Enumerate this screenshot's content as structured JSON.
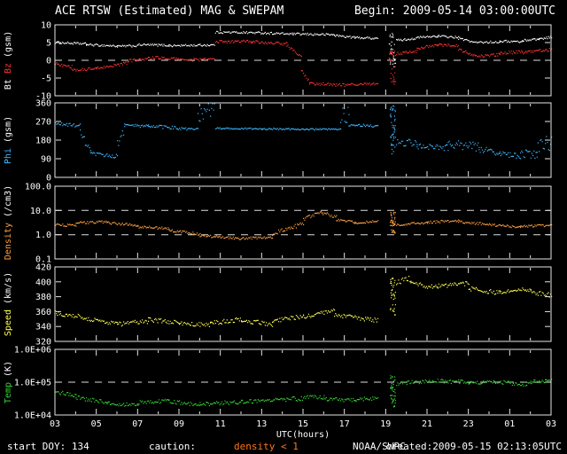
{
  "header": {
    "title": "ACE RTSW (Estimated) MAG & SWEPAM",
    "begin": "Begin: 2009-05-14 03:00:00UTC"
  },
  "footer": {
    "start_doy": "start DOY: 134",
    "caution_label": "caution:",
    "caution_value": "density < 1",
    "source": "NOAA/SWPC",
    "created": "created:2009-05-15 02:13:05UTC"
  },
  "chart_data": {
    "type": "scatter",
    "title": "ACE RTSW (Estimated) MAG & SWEPAM",
    "begin_time": "2009-05-14 03:00:00UTC",
    "background": "#000000",
    "x_axis": {
      "label": "UTC(hours)",
      "start_hour": 3,
      "end_hour": 27,
      "tick_interval_hours": 2,
      "tick_labels": [
        "03",
        "05",
        "07",
        "09",
        "11",
        "13",
        "15",
        "17",
        "19",
        "21",
        "23",
        "01",
        "03"
      ]
    },
    "panels": [
      {
        "name": "mag",
        "label_parts": [
          {
            "text": "Bt ",
            "color": "#ffffff"
          },
          {
            "text": "Bz",
            "color": "#ff3232"
          },
          {
            "text": " (gsm)",
            "color": "#ffffff"
          }
        ],
        "scale": "linear",
        "ylim": [
          -10,
          10
        ],
        "yticks": [
          {
            "v": 10,
            "label": "10"
          },
          {
            "v": 5,
            "label": "5"
          },
          {
            "v": 0,
            "label": "0"
          },
          {
            "v": -5,
            "label": "-5"
          },
          {
            "v": -10,
            "label": "-10"
          }
        ],
        "dashed": [
          0
        ],
        "series": [
          {
            "name": "Bt",
            "color": "#ffffff",
            "noise": 0.3,
            "segments": [
              [
                3,
                4.5,
                5.0,
                4.6
              ],
              [
                4.5,
                6,
                4.4,
                4.0
              ],
              [
                6,
                7,
                3.9,
                4.1
              ],
              [
                7,
                8.5,
                4.4,
                4.2
              ],
              [
                8.5,
                10.7,
                4.1,
                4.3
              ],
              [
                10.75,
                12.5,
                7.9,
                7.8
              ],
              [
                12.5,
                14.5,
                7.8,
                7.4
              ],
              [
                14.5,
                16.5,
                7.4,
                7.2
              ],
              [
                16.5,
                17.5,
                7.0,
                6.4
              ],
              [
                17.5,
                18.6,
                6.4,
                6.2
              ],
              [
                19.15,
                19.45,
                3,
                3,
                5,
                30
              ],
              [
                19.5,
                20.5,
                5.6,
                6.2
              ],
              [
                20.5,
                21.5,
                6.4,
                6.8
              ],
              [
                21.5,
                22.5,
                6.8,
                6.4
              ],
              [
                22.5,
                23.2,
                6.2,
                5.2
              ],
              [
                23.2,
                24.5,
                5.0,
                5.2
              ],
              [
                24.5,
                25.6,
                5.4,
                5.2
              ],
              [
                25.6,
                26.4,
                5.6,
                6.0
              ],
              [
                26.4,
                27,
                6.0,
                6.6
              ]
            ]
          },
          {
            "name": "Bz",
            "color": "#ff3232",
            "noise": 0.4,
            "segments": [
              [
                3,
                3.8,
                -1.0,
                -1.8
              ],
              [
                3.8,
                5,
                -2.8,
                -2.4
              ],
              [
                5,
                6.5,
                -2.2,
                -0.8
              ],
              [
                6.5,
                8,
                -0.2,
                0.8
              ],
              [
                8,
                9.5,
                0.6,
                0.2
              ],
              [
                9.5,
                10.7,
                0.1,
                0.3
              ],
              [
                10.75,
                12.5,
                5.2,
                5.4
              ],
              [
                12.5,
                14.2,
                5.2,
                4.6
              ],
              [
                14.2,
                14.9,
                4.2,
                1.0
              ],
              [
                14.9,
                15.3,
                -3.0,
                -6.0
              ],
              [
                15.3,
                17,
                -6.6,
                -7.0
              ],
              [
                17,
                18.6,
                -7.0,
                -6.6
              ],
              [
                19.15,
                19.45,
                -2,
                -2,
                5,
                30
              ],
              [
                19.5,
                20.5,
                1.8,
                2.6
              ],
              [
                20.5,
                21.5,
                3.4,
                4.2
              ],
              [
                21.5,
                22.5,
                4.4,
                4.0
              ],
              [
                22.5,
                23.3,
                3.2,
                1.2
              ],
              [
                23.3,
                24.5,
                1.0,
                1.6
              ],
              [
                24.5,
                25.6,
                2.0,
                2.4
              ],
              [
                25.6,
                27,
                2.2,
                3.0
              ]
            ]
          }
        ]
      },
      {
        "name": "phi",
        "label_parts": [
          {
            "text": "Phi",
            "color": "#3fb8ff"
          },
          {
            "text": " (gsm)",
            "color": "#ffffff"
          }
        ],
        "scale": "linear",
        "ylim": [
          0,
          360
        ],
        "yticks": [
          {
            "v": 360,
            "label": "360"
          },
          {
            "v": 270,
            "label": "270"
          },
          {
            "v": 180,
            "label": "180"
          },
          {
            "v": 90,
            "label": "90"
          },
          {
            "v": 0,
            "label": "0"
          }
        ],
        "dashed": [],
        "series": [
          {
            "name": "Phi",
            "color": "#3fb8ff",
            "noise": 8,
            "segments": [
              [
                3,
                4.2,
                258,
                250
              ],
              [
                4.2,
                4.7,
                210,
                130,
                20
              ],
              [
                4.7,
                6,
                112,
                102,
                10
              ],
              [
                6,
                6.35,
                160,
                240,
                25
              ],
              [
                6.35,
                7.5,
                252,
                246
              ],
              [
                7.5,
                9,
                248,
                238
              ],
              [
                9,
                9.9,
                234,
                230
              ],
              [
                9.9,
                10.7,
                300,
                340,
                45
              ],
              [
                10.75,
                13,
                237,
                234,
                4
              ],
              [
                13,
                16.8,
                234,
                231,
                4
              ],
              [
                16.8,
                17.2,
                290,
                310,
                40
              ],
              [
                17.2,
                18.6,
                254,
                248,
                6
              ],
              [
                19.2,
                19.45,
                230,
                230,
                120,
                45
              ],
              [
                19.5,
                20.5,
                172,
                162,
                18
              ],
              [
                20.5,
                22,
                152,
                142,
                14
              ],
              [
                22,
                23.5,
                158,
                148,
                22
              ],
              [
                23.5,
                24.5,
                140,
                122,
                18
              ],
              [
                24.5,
                25.5,
                112,
                102,
                13
              ],
              [
                25.5,
                26.3,
                102,
                118,
                26
              ],
              [
                26.3,
                27,
                148,
                168,
                38
              ]
            ]
          }
        ]
      },
      {
        "name": "density",
        "label_parts": [
          {
            "text": "Density",
            "color": "#ffa040"
          },
          {
            "text": " (/cm3)",
            "color": "#ffffff"
          }
        ],
        "scale": "log",
        "ylim": [
          0.1,
          100
        ],
        "yticks": [
          {
            "v": 100,
            "label": "100.0"
          },
          {
            "v": 10,
            "label": "10.0"
          },
          {
            "v": 1,
            "label": "1.0"
          },
          {
            "v": 0.1,
            "label": "0.1"
          }
        ],
        "dashed": [
          10,
          1
        ],
        "series": [
          {
            "name": "Density",
            "color": "#ffa040",
            "noise": 0.05,
            "segments": [
              [
                3,
                4,
                2.6,
                2.3
              ],
              [
                4,
                5.5,
                3.0,
                3.4
              ],
              [
                5.5,
                7,
                3.1,
                2.4
              ],
              [
                7,
                8.5,
                2.1,
                1.8
              ],
              [
                8.5,
                10,
                1.5,
                1.05
              ],
              [
                10,
                12,
                0.92,
                0.7
              ],
              [
                12,
                13.5,
                0.68,
                0.8
              ],
              [
                13.5,
                15,
                1.1,
                2.8,
                0.08
              ],
              [
                15,
                15.9,
                4.5,
                8.5,
                0.07
              ],
              [
                15.9,
                16.6,
                8.0,
                5.5,
                0.07
              ],
              [
                16.6,
                17.5,
                4.2,
                3.2
              ],
              [
                17.5,
                18.6,
                3.1,
                3.5
              ],
              [
                19.2,
                19.45,
                3,
                3,
                0.45,
                40
              ],
              [
                19.5,
                21,
                2.6,
                3.1
              ],
              [
                21,
                22.5,
                3.2,
                3.8
              ],
              [
                22.5,
                24,
                3.4,
                2.6
              ],
              [
                24,
                25.5,
                2.5,
                2.1
              ],
              [
                25.5,
                27,
                2.1,
                2.5
              ]
            ]
          }
        ]
      },
      {
        "name": "speed",
        "label_parts": [
          {
            "text": "Speed",
            "color": "#ffff55"
          },
          {
            "text": " (km/s)",
            "color": "#ffffff"
          }
        ],
        "scale": "linear",
        "ylim": [
          320,
          420
        ],
        "yticks": [
          {
            "v": 420,
            "label": "420"
          },
          {
            "v": 400,
            "label": "400"
          },
          {
            "v": 380,
            "label": "380"
          },
          {
            "v": 360,
            "label": "360"
          },
          {
            "v": 340,
            "label": "340"
          },
          {
            "v": 320,
            "label": "320"
          }
        ],
        "dashed": [],
        "series": [
          {
            "name": "Speed",
            "color": "#ffff55",
            "noise": 3,
            "segments": [
              [
                3,
                4.5,
                358,
                352
              ],
              [
                4.5,
                6,
                350,
                344
              ],
              [
                6,
                7.5,
                343,
                347
              ],
              [
                7.5,
                9,
                349,
                345
              ],
              [
                9,
                10.5,
                344,
                342
              ],
              [
                10.5,
                12,
                344,
                350
              ],
              [
                12,
                13.5,
                348,
                343
              ],
              [
                13.5,
                15,
                347,
                354
              ],
              [
                15,
                16.5,
                352,
                361
              ],
              [
                16.5,
                18,
                356,
                350
              ],
              [
                18,
                18.6,
                350,
                348
              ],
              [
                19.2,
                19.45,
                380,
                380,
                25,
                35
              ],
              [
                19.5,
                20.2,
                399,
                403,
                5
              ],
              [
                20.2,
                21.5,
                398,
                392
              ],
              [
                21.5,
                23,
                394,
                398
              ],
              [
                23,
                24.5,
                391,
                385
              ],
              [
                24.5,
                26,
                385,
                390
              ],
              [
                26,
                27,
                386,
                382
              ]
            ]
          }
        ]
      },
      {
        "name": "temp",
        "label_parts": [
          {
            "text": "Temp",
            "color": "#35d435"
          },
          {
            "text": " (K)",
            "color": "#ffffff"
          }
        ],
        "scale": "log",
        "ylim": [
          10000,
          1000000
        ],
        "yticks": [
          {
            "v": 1000000,
            "label": "1.0E+06"
          },
          {
            "v": 100000,
            "label": "1.0E+05"
          },
          {
            "v": 10000,
            "label": "1.0E+04"
          }
        ],
        "dashed": [
          100000
        ],
        "series": [
          {
            "name": "Temp",
            "color": "#35d435",
            "noise": 0.06,
            "segments": [
              [
                3,
                4,
                50000,
                40000
              ],
              [
                4,
                5.5,
                34000,
                24000
              ],
              [
                5.5,
                7,
                22000,
                20000
              ],
              [
                7,
                8.5,
                24000,
                27000
              ],
              [
                8.5,
                10,
                25000,
                21000
              ],
              [
                10,
                12,
                21000,
                25000
              ],
              [
                12,
                14,
                25000,
                30000
              ],
              [
                14,
                16,
                29000,
                36000,
                0.08
              ],
              [
                16,
                17.5,
                31000,
                28000
              ],
              [
                17.5,
                18.6,
                30000,
                32000
              ],
              [
                19.2,
                19.45,
                50000,
                50000,
                0.5,
                40
              ],
              [
                19.5,
                21,
                90000,
                105000
              ],
              [
                21,
                23,
                110000,
                100000
              ],
              [
                23,
                25,
                95000,
                100000
              ],
              [
                25,
                26,
                90000,
                86000
              ],
              [
                26,
                27,
                100000,
                112000
              ]
            ]
          }
        ]
      }
    ]
  }
}
